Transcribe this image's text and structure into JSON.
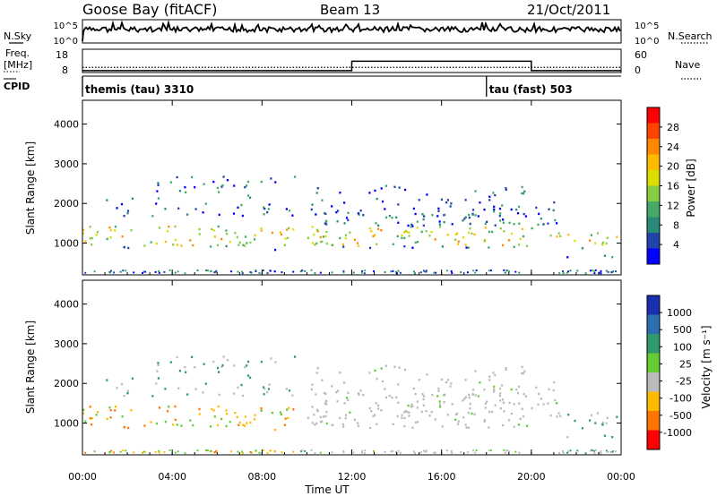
{
  "header": {
    "station": "Goose Bay (fitACF)",
    "beam": "Beam 13",
    "date": "21/Oct/2011"
  },
  "noise_panel": {
    "left_label": "N.Sky",
    "right_label": "N.Search",
    "left_ticks": [
      "10^5",
      "10^0"
    ],
    "right_ticks": [
      "10^5",
      "10^0"
    ],
    "left_legend_style": "solid",
    "right_legend_style": "dotted"
  },
  "freq_panel": {
    "left_label_line1": "Freq.",
    "left_label_line2": "[MHz]",
    "right_label": "Nave",
    "left_ticks": [
      "18",
      "8"
    ],
    "right_ticks": [
      "60",
      "0"
    ],
    "freq_level_mhz": 10.2,
    "nave_segments": [
      {
        "start_hour": 0,
        "end_hour": 12,
        "nave": 5
      },
      {
        "start_hour": 12,
        "end_hour": 20,
        "nave": 29
      },
      {
        "start_hour": 20,
        "end_hour": 24,
        "nave": 5
      }
    ]
  },
  "cpid_panel": {
    "label": "CPID",
    "modes": [
      {
        "start_hour": 0,
        "label": "themis (tau) 3310"
      },
      {
        "start_hour": 18,
        "label": "tau (fast) 503"
      }
    ]
  },
  "chart_data": [
    {
      "type": "heatmap",
      "name": "power",
      "ylabel": "Slant Range [km]",
      "xlabel": "",
      "xlim": [
        0,
        24
      ],
      "ylim": [
        200,
        4600
      ],
      "yticks": [
        "1000",
        "2000",
        "3000",
        "4000"
      ],
      "colorbar": {
        "label": "Power [dB]",
        "ticks": [
          "28",
          "24",
          "20",
          "16",
          "12",
          "8",
          "4"
        ],
        "colors": [
          "#ff0000",
          "#ff4400",
          "#ff8800",
          "#ffbb00",
          "#dddd00",
          "#88cc44",
          "#44aa66",
          "#2a8a7a",
          "#2244aa",
          "#0000ff"
        ]
      }
    },
    {
      "type": "heatmap",
      "name": "velocity",
      "ylabel": "Slant Range [km]",
      "xlabel": "Time UT",
      "xlim": [
        0,
        24
      ],
      "ylim": [
        200,
        4600
      ],
      "yticks": [
        "1000",
        "2000",
        "3000",
        "4000"
      ],
      "xticks": [
        "00:00",
        "04:00",
        "08:00",
        "12:00",
        "16:00",
        "20:00",
        "00:00"
      ],
      "colorbar": {
        "label": "Velocity [m s⁻¹]",
        "ticks": [
          "1000",
          "500",
          "100",
          "25",
          "-25",
          "-100",
          "-500",
          "-1000"
        ],
        "colors": [
          "#1a2fb0",
          "#2b6fb0",
          "#2f9a6a",
          "#66cc33",
          "#bbbbbb",
          "#ffbb00",
          "#ff7700",
          "#ff0000"
        ]
      }
    }
  ]
}
